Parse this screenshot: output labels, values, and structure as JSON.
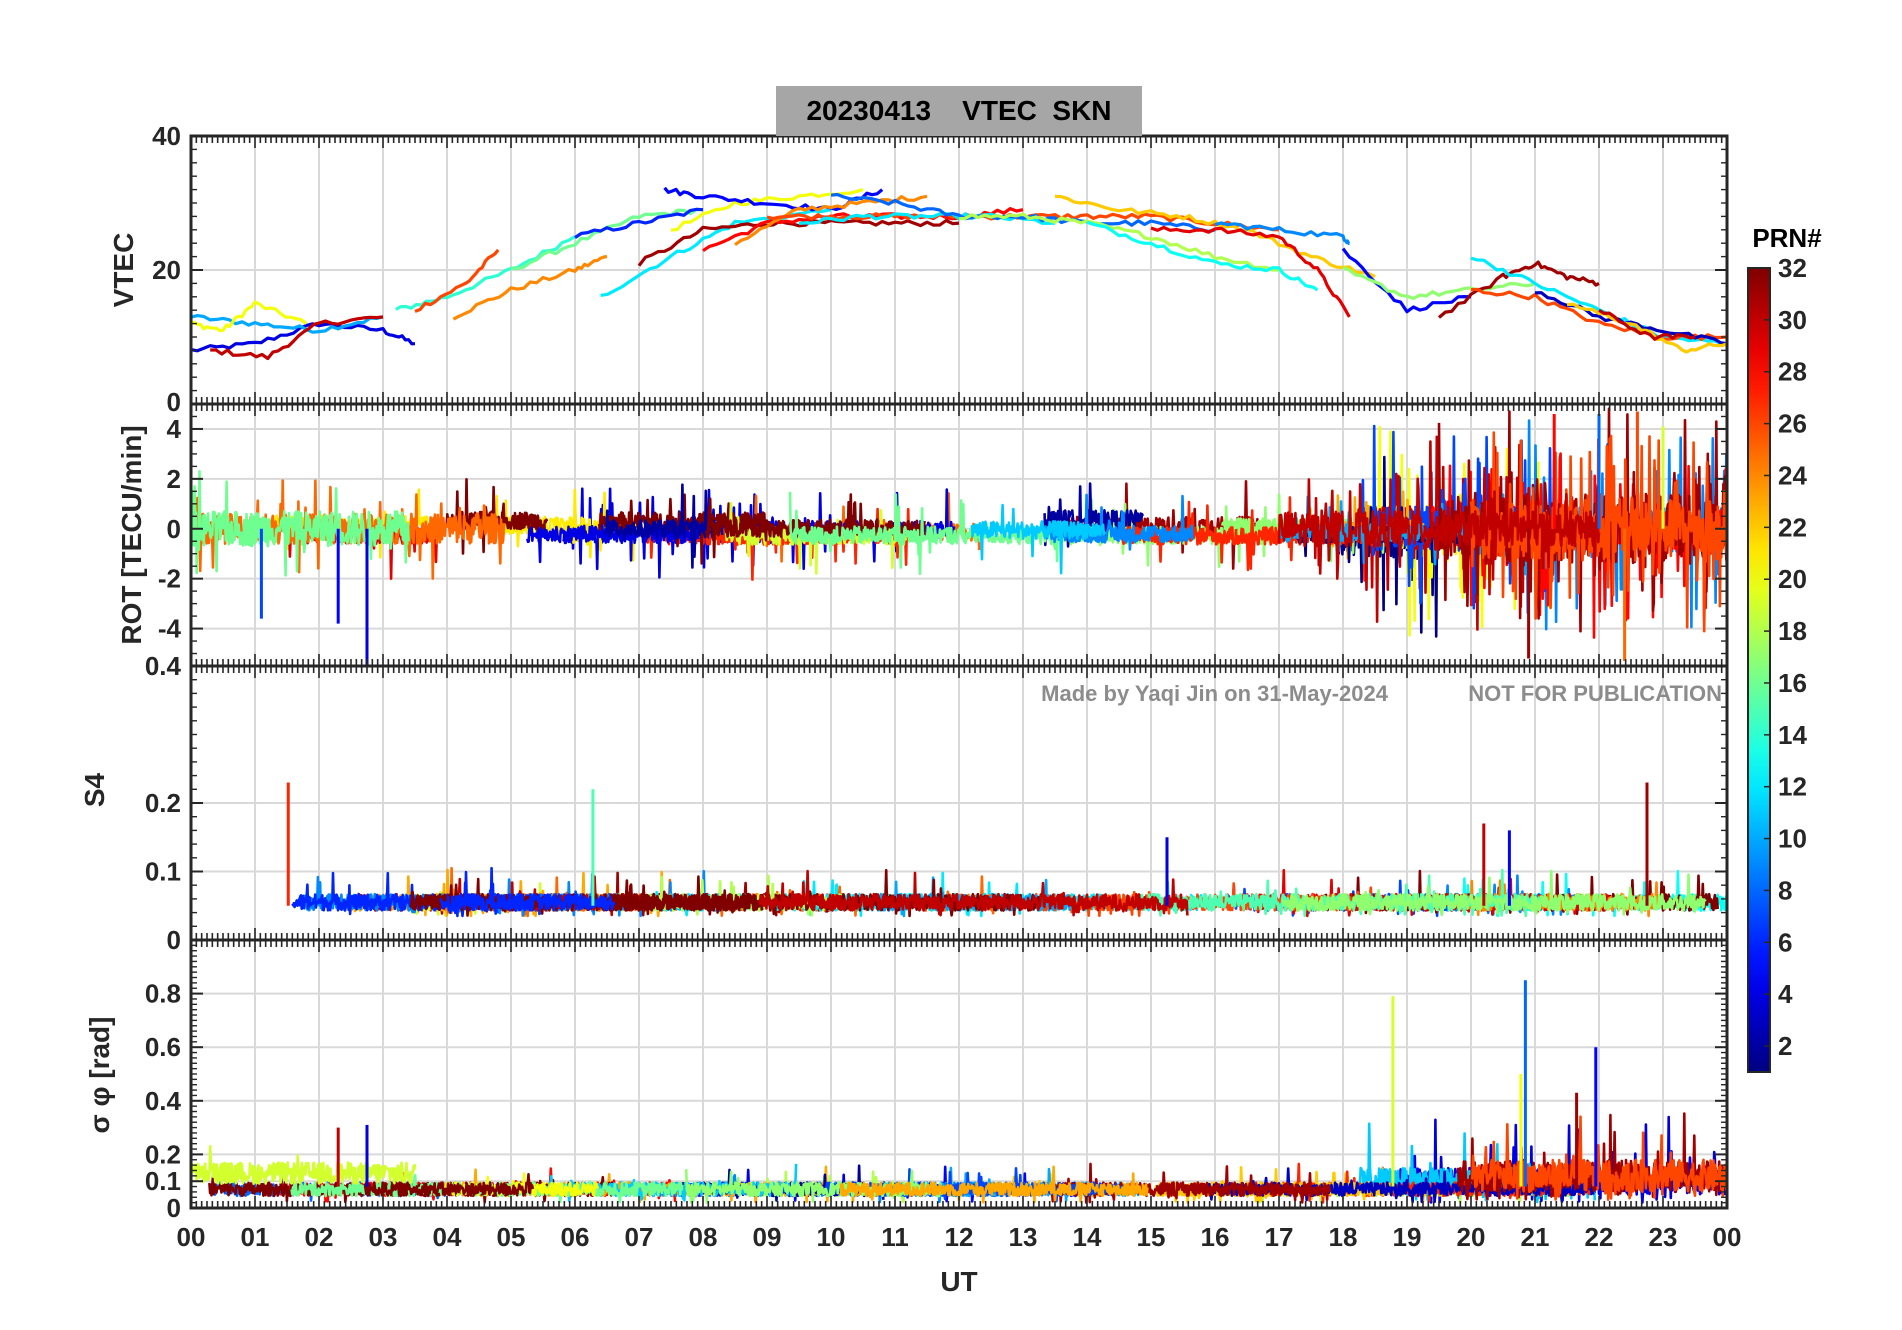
{
  "figure": {
    "title": "20230413    VTEC  SKN",
    "watermark_left": "Made by Yaqi Jin on 31-May-2024",
    "watermark_right": "NOT FOR PUBLICATION",
    "xlabel": "UT",
    "x_ticks": [
      "00",
      "01",
      "02",
      "03",
      "04",
      "05",
      "06",
      "07",
      "08",
      "09",
      "10",
      "11",
      "12",
      "13",
      "14",
      "15",
      "16",
      "17",
      "18",
      "19",
      "20",
      "21",
      "22",
      "23",
      "00"
    ]
  },
  "colorbar": {
    "label": "PRN#",
    "range": [
      1,
      32
    ],
    "ticks": [
      "2",
      "4",
      "6",
      "8",
      "10",
      "12",
      "14",
      "16",
      "18",
      "20",
      "22",
      "24",
      "26",
      "28",
      "30",
      "32"
    ],
    "colormap": "jet"
  },
  "chart_data": [
    {
      "type": "line",
      "panel": "vtec",
      "ylabel": "VTEC",
      "xlim": [
        0,
        24
      ],
      "ylim": [
        0,
        40
      ],
      "y_ticks": [
        "0",
        "20",
        "40"
      ],
      "grid": true,
      "series_note_values": [
        {
          "prn": 4,
          "x": [
            0,
            1,
            2,
            3,
            3.5
          ],
          "y": [
            8,
            9,
            12,
            11,
            9
          ]
        },
        {
          "prn": 10,
          "x": [
            0,
            1,
            2,
            3
          ],
          "y": [
            13,
            12,
            11,
            13
          ]
        },
        {
          "prn": 20,
          "x": [
            0,
            0.5,
            1,
            1.8
          ],
          "y": [
            12,
            11,
            15,
            12
          ]
        },
        {
          "prn": 30,
          "x": [
            0.3,
            1.2,
            2,
            3
          ],
          "y": [
            8,
            7,
            12,
            13
          ]
        },
        {
          "prn": 14,
          "x": [
            3.2,
            4,
            5,
            6
          ],
          "y": [
            14,
            16,
            20,
            25
          ]
        },
        {
          "prn": 24,
          "x": [
            4.1,
            5,
            6,
            6.5
          ],
          "y": [
            13,
            17,
            20,
            22
          ]
        },
        {
          "prn": 26,
          "x": [
            3.5,
            4.3,
            4.8
          ],
          "y": [
            14,
            18,
            23
          ]
        },
        {
          "prn": 16,
          "x": [
            5,
            6,
            7,
            8
          ],
          "y": [
            20,
            24,
            28,
            29
          ]
        },
        {
          "prn": 6,
          "x": [
            6,
            7,
            8
          ],
          "y": [
            25,
            27,
            29
          ]
        },
        {
          "prn": 12,
          "x": [
            6.4,
            7.5,
            8.5,
            10
          ],
          "y": [
            16,
            22,
            27,
            29
          ]
        },
        {
          "prn": 31,
          "x": [
            7,
            8,
            9,
            10,
            11,
            12
          ],
          "y": [
            21,
            26,
            27,
            27,
            27,
            27
          ]
        },
        {
          "prn": 20,
          "x": [
            7.5,
            8.5,
            9.5,
            10.5
          ],
          "y": [
            26,
            30,
            31,
            32
          ]
        },
        {
          "prn": 5,
          "x": [
            7.4,
            8,
            9,
            10,
            10.8
          ],
          "y": [
            32,
            31,
            30,
            29,
            32
          ]
        },
        {
          "prn": 28,
          "x": [
            8,
            9,
            10,
            11,
            12,
            13
          ],
          "y": [
            23,
            27,
            28,
            28,
            28,
            29
          ]
        },
        {
          "prn": 24,
          "x": [
            8.5,
            9.5,
            10.5,
            11.5
          ],
          "y": [
            24,
            29,
            30,
            31
          ]
        },
        {
          "prn": 26,
          "x": [
            9,
            10,
            11,
            12,
            13,
            14,
            15,
            16,
            17
          ],
          "y": [
            28,
            28,
            28,
            28,
            28,
            28,
            28,
            27,
            26
          ]
        },
        {
          "prn": 12,
          "x": [
            9.5,
            10.5,
            11.5,
            12.5,
            13.5
          ],
          "y": [
            27,
            28,
            28,
            28,
            27
          ]
        },
        {
          "prn": 8,
          "x": [
            10,
            11,
            12,
            13,
            14,
            15,
            16
          ],
          "y": [
            31,
            30,
            28,
            28,
            27,
            27,
            26
          ]
        },
        {
          "prn": 18,
          "x": [
            12,
            13,
            14,
            15,
            16,
            17
          ],
          "y": [
            28,
            28,
            27,
            25,
            22,
            20
          ]
        },
        {
          "prn": 22,
          "x": [
            13.5,
            14.5,
            15.5,
            16.5,
            17.5,
            18.5
          ],
          "y": [
            31,
            29,
            28,
            26,
            22,
            19
          ]
        },
        {
          "prn": 13,
          "x": [
            14,
            15,
            16,
            17,
            17.6
          ],
          "y": [
            27,
            24,
            21,
            20,
            17
          ]
        },
        {
          "prn": 29,
          "x": [
            15,
            16,
            17,
            17.6,
            18.1
          ],
          "y": [
            26,
            26,
            25,
            20,
            13
          ]
        },
        {
          "prn": 9,
          "x": [
            16,
            17,
            18,
            18.1
          ],
          "y": [
            27,
            26,
            25,
            24
          ]
        },
        {
          "prn": 5,
          "x": [
            18,
            19,
            20
          ],
          "y": [
            23,
            14,
            16
          ]
        },
        {
          "prn": 17,
          "x": [
            18,
            19,
            20,
            21
          ],
          "y": [
            20,
            16,
            17,
            18
          ]
        },
        {
          "prn": 31,
          "x": [
            19.5,
            20.5,
            21,
            21.5,
            22
          ],
          "y": [
            13,
            19,
            21,
            19,
            18
          ]
        },
        {
          "prn": 12,
          "x": [
            20,
            21,
            22,
            23,
            24
          ],
          "y": [
            22,
            18,
            14,
            10,
            9
          ]
        },
        {
          "prn": 26,
          "x": [
            20,
            21,
            22,
            23,
            24
          ],
          "y": [
            17,
            16,
            12,
            10,
            10
          ]
        },
        {
          "prn": 3,
          "x": [
            21,
            22,
            23,
            24
          ],
          "y": [
            17,
            13,
            11,
            9
          ]
        },
        {
          "prn": 22,
          "x": [
            21.5,
            22.5,
            23.3,
            24
          ],
          "y": [
            15,
            12,
            8,
            9
          ]
        },
        {
          "prn": 30,
          "x": [
            22,
            22.8,
            23.5
          ],
          "y": [
            14,
            10,
            10
          ]
        }
      ]
    },
    {
      "type": "line",
      "panel": "rot",
      "ylabel": "ROT [TECU/min]",
      "xlim": [
        0,
        24
      ],
      "ylim": [
        -5.5,
        5
      ],
      "y_ticks": [
        "-4",
        "-2",
        "0",
        "2",
        "4"
      ],
      "grid": true,
      "notable_values": [
        {
          "prn": 4,
          "x": 2.75,
          "y": -5.5
        },
        {
          "prn": 7,
          "x": 1.1,
          "y": -3.6
        },
        {
          "prn": 5,
          "x": 2.3,
          "y": -3.8
        },
        {
          "prn": 31,
          "x": 20.9,
          "y": -5.2
        },
        {
          "prn": 25,
          "x": 22.4,
          "y": -5.3
        },
        {
          "prn": 8,
          "x": 22.0,
          "y": 4.6
        },
        {
          "prn": 28,
          "x": 21.3,
          "y": 4.6
        },
        {
          "prn": 26,
          "x": 22.6,
          "y": 4.7
        },
        {
          "prn": 19,
          "x": 23.0,
          "y": 4.1
        }
      ]
    },
    {
      "type": "line",
      "panel": "s4",
      "ylabel": "S4",
      "xlim": [
        0,
        24
      ],
      "ylim": [
        0,
        0.4
      ],
      "y_ticks": [
        "0",
        "0.1",
        "0.2",
        "0.4"
      ],
      "grid": true,
      "notable_values": [
        {
          "prn": 27,
          "x": 1.52,
          "y": 0.23
        },
        {
          "prn": 15,
          "x": 6.28,
          "y": 0.22
        },
        {
          "prn": 31,
          "x": 22.75,
          "y": 0.23
        },
        {
          "prn": 30,
          "x": 20.2,
          "y": 0.17
        },
        {
          "prn": 5,
          "x": 20.6,
          "y": 0.16
        },
        {
          "prn": 4,
          "x": 15.25,
          "y": 0.15
        }
      ]
    },
    {
      "type": "line",
      "panel": "sigma_phi",
      "ylabel": "σ φ [rad]",
      "xlim": [
        0,
        24
      ],
      "ylim": [
        0,
        1.0
      ],
      "y_ticks": [
        "0",
        "0.1",
        "0.2",
        "0.4",
        "0.6",
        "0.8"
      ],
      "grid": true,
      "notable_values": [
        {
          "prn": 19,
          "x": 18.78,
          "y": 0.79
        },
        {
          "prn": 8,
          "x": 20.85,
          "y": 0.85
        },
        {
          "prn": 5,
          "x": 21.95,
          "y": 0.6
        },
        {
          "prn": 20,
          "x": 20.78,
          "y": 0.5
        },
        {
          "prn": 31,
          "x": 21.65,
          "y": 0.43
        },
        {
          "prn": 4,
          "x": 2.75,
          "y": 0.31
        },
        {
          "prn": 30,
          "x": 2.3,
          "y": 0.3
        }
      ]
    }
  ]
}
